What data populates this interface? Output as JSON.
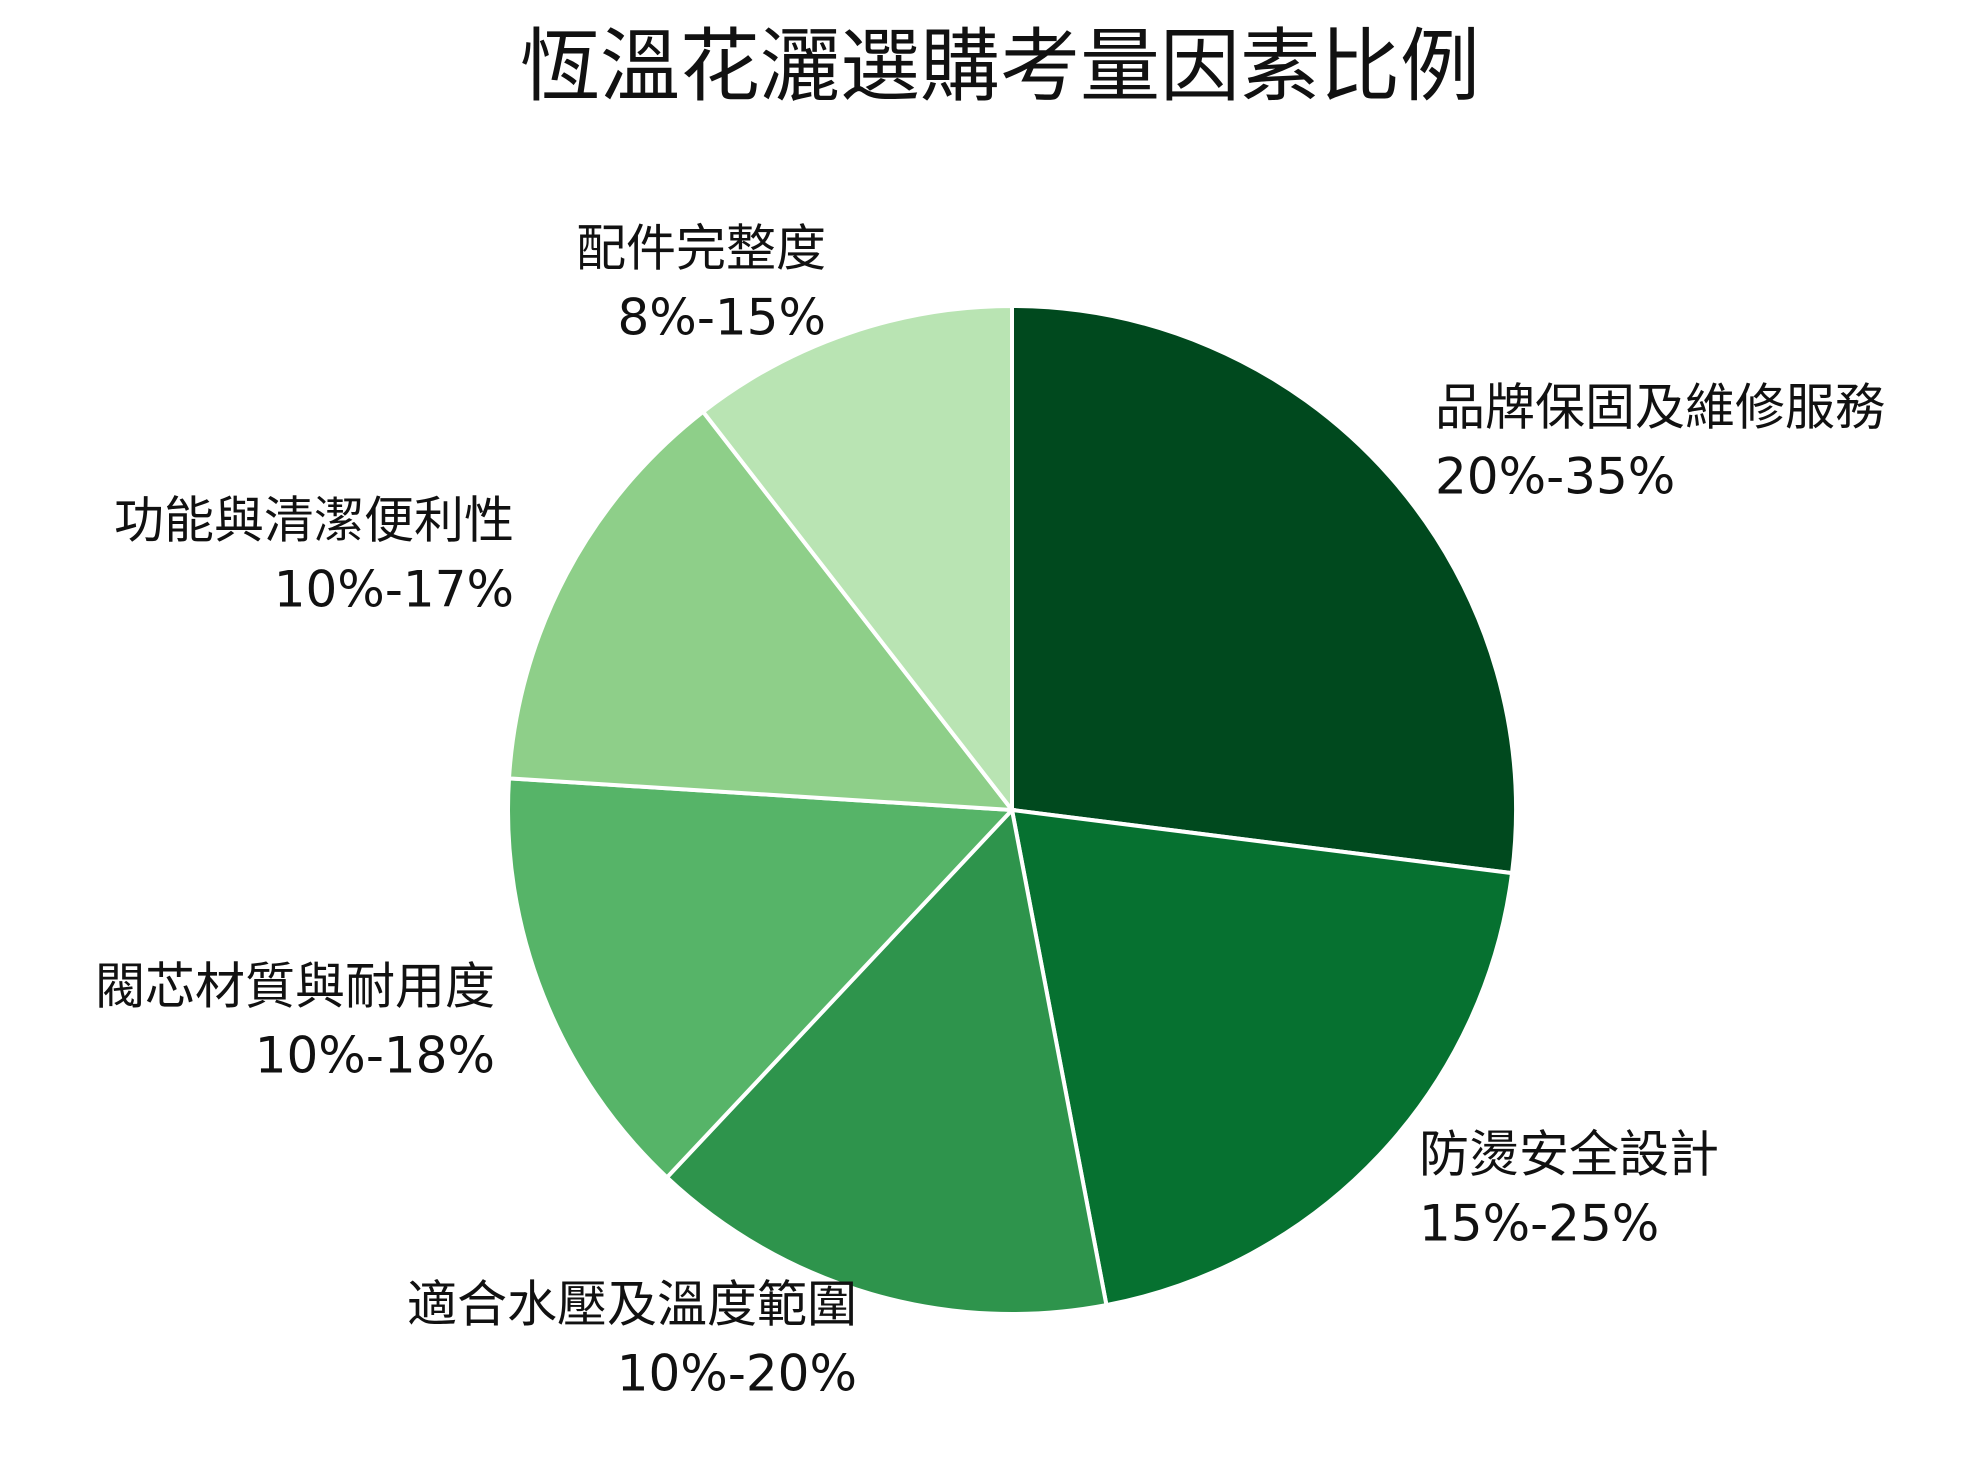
{
  "chart_data": {
    "type": "pie",
    "title": "恆溫花灑選購考量因素比例",
    "categories": [
      "品牌保固及維修服務",
      "防燙安全設計",
      "適合水壓及溫度範圍",
      "閥芯材質與耐用度",
      "功能與清潔便利性",
      "配件完整度"
    ],
    "ranges": [
      "20%-35%",
      "15%-25%",
      "10%-20%",
      "10%-18%",
      "10%-17%",
      "8%-15%"
    ],
    "values": [
      27,
      20,
      15,
      14,
      13.5,
      10.5
    ],
    "colors": [
      "#00491e",
      "#067130",
      "#2e944c",
      "#56b468",
      "#8ecf89",
      "#b9e4b3"
    ]
  }
}
